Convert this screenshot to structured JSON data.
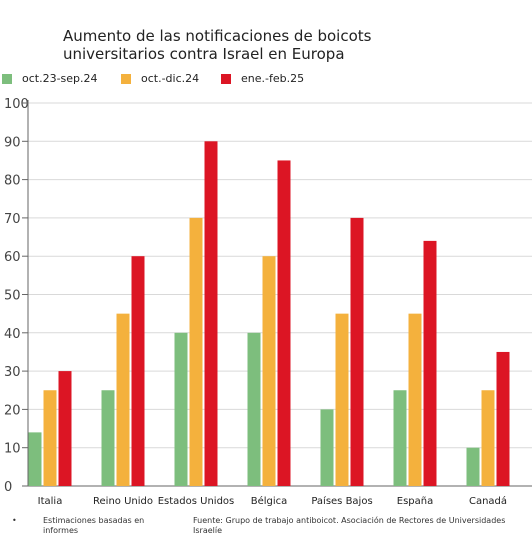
{
  "chart_data": {
    "type": "bar",
    "title": "Aumento de las notificaciones de boicots universitarios contra Israel en Europa",
    "categories": [
      "Italia",
      "Reino Unido",
      "Estados Unidos",
      "Bélgica",
      "Países Bajos",
      "España",
      "Canadá"
    ],
    "series": [
      {
        "name": "oct.23-sep.24",
        "color": "#7dbe7d",
        "values": [
          14,
          25,
          40,
          40,
          20,
          25,
          10
        ]
      },
      {
        "name": "oct.-dic.24",
        "color": "#f4b13d",
        "values": [
          25,
          45,
          70,
          60,
          45,
          45,
          25
        ]
      },
      {
        "name": "ene.-feb.25",
        "color": "#dc1524",
        "values": [
          30,
          60,
          90,
          85,
          70,
          64,
          35
        ]
      }
    ],
    "yticks": [
      0,
      10,
      20,
      30,
      40,
      50,
      60,
      70,
      80,
      90,
      100
    ],
    "ylim": [
      0,
      100
    ],
    "grid": true,
    "legend_position": "top-left"
  },
  "footer": {
    "bullet": "•",
    "note": "Estimaciones basadas en informes",
    "source": "Fuente: Grupo de trabajo antiboicot. Asociación de Rectores de Universidades Israelíe"
  }
}
